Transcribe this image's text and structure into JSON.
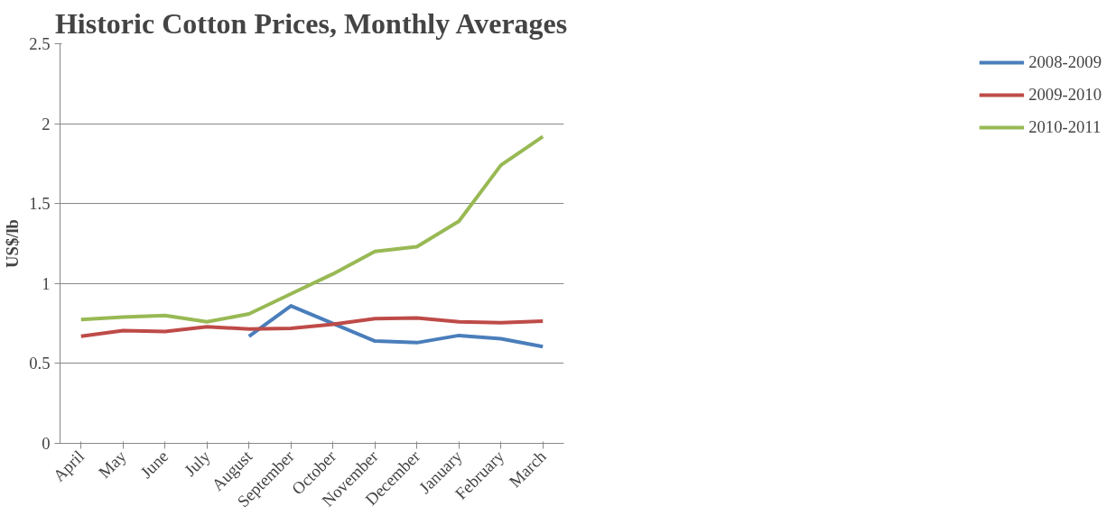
{
  "chart_data": {
    "type": "line",
    "title": "Historic Cotton Prices, Monthly Averages",
    "ylabel": "US$/lb",
    "categories": [
      "April",
      "May",
      "June",
      "July",
      "August",
      "September",
      "October",
      "November",
      "December",
      "January",
      "February",
      "March"
    ],
    "series": [
      {
        "name": "2008-2009",
        "color": "#4a7ebb",
        "values": [
          null,
          null,
          null,
          null,
          0.67,
          0.86,
          0.75,
          0.64,
          0.63,
          0.675,
          0.655,
          0.605
        ]
      },
      {
        "name": "2009-2010",
        "color": "#be4b48",
        "values": [
          0.67,
          0.705,
          0.7,
          0.73,
          0.715,
          0.72,
          0.745,
          0.78,
          0.785,
          0.76,
          0.755,
          0.765
        ]
      },
      {
        "name": "2010-2011",
        "color": "#98b954",
        "values": [
          0.775,
          0.79,
          0.8,
          0.76,
          0.81,
          0.935,
          1.06,
          1.2,
          1.23,
          1.39,
          1.74,
          1.92
        ]
      }
    ],
    "ylim": [
      0,
      2.5
    ],
    "yticks": [
      0,
      0.5,
      1,
      1.5,
      2,
      2.5
    ],
    "grid": "y",
    "legend": "right",
    "marker": "none",
    "line_style": "solid"
  }
}
